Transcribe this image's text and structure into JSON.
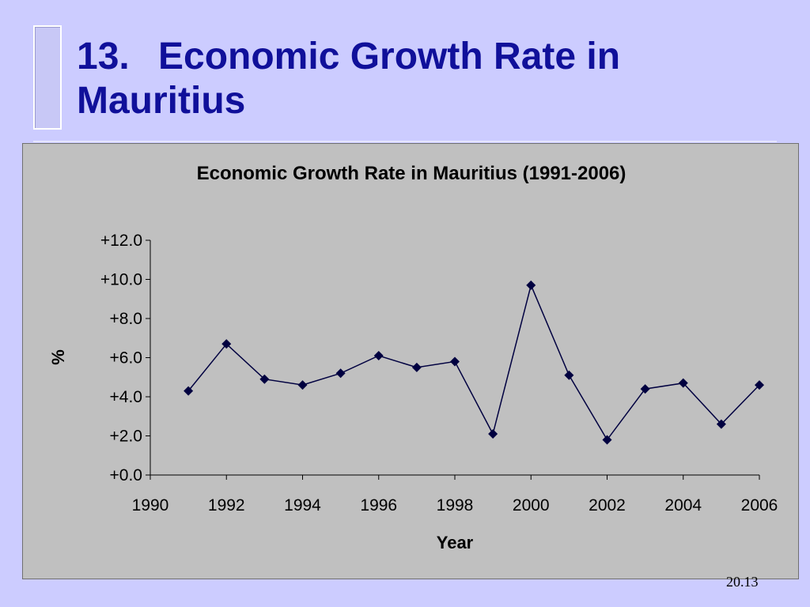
{
  "slide": {
    "title_number": "13.",
    "title_line1": "Economic Growth Rate in",
    "title_line2": "Mauritius",
    "page_number": "20.13"
  },
  "colors": {
    "background": "#ccccff",
    "title": "#10109a",
    "plot_area": "#c0c0c0",
    "series": "#000040"
  },
  "chart_data": {
    "type": "line",
    "title": "Economic Growth Rate in Mauritius (1991-2006)",
    "xlabel": "Year",
    "ylabel": "%",
    "xlim": [
      1990,
      2006
    ],
    "ylim": [
      0,
      12
    ],
    "x_ticks": [
      1990,
      1992,
      1994,
      1996,
      1998,
      2000,
      2002,
      2004,
      2006
    ],
    "x_tick_labels": [
      "1990",
      "1992",
      "1994",
      "1996",
      "1998",
      "2000",
      "2002",
      "2004",
      "2006"
    ],
    "y_ticks": [
      0,
      2,
      4,
      6,
      8,
      10,
      12
    ],
    "y_tick_labels": [
      "+0.0",
      "+2.0",
      "+4.0",
      "+6.0",
      "+8.0",
      "+10.0",
      "+12.0"
    ],
    "grid": false,
    "legend": "none",
    "marker": "diamond",
    "series": [
      {
        "x": [
          1991,
          1992,
          1993,
          1994,
          1995,
          1996,
          1997,
          1998,
          1999,
          2000,
          2001,
          2002,
          2003,
          2004,
          2005,
          2006
        ],
        "values": [
          4.3,
          6.7,
          4.9,
          4.6,
          5.2,
          6.1,
          5.5,
          5.8,
          2.1,
          9.7,
          5.1,
          1.8,
          4.4,
          4.7,
          2.6,
          4.6
        ]
      }
    ]
  }
}
